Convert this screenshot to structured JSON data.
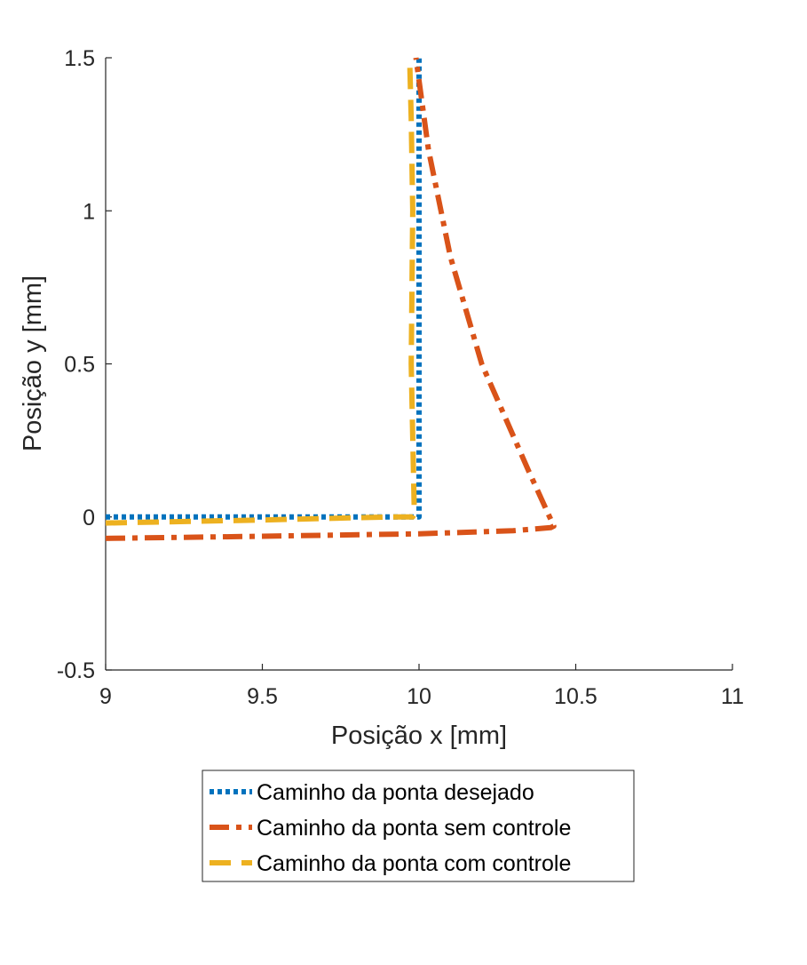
{
  "chart_data": {
    "type": "line",
    "xlabel": "Posição x [mm]",
    "ylabel": "Posição y [mm]",
    "xlim": [
      9,
      11
    ],
    "ylim": [
      -0.5,
      1.5
    ],
    "xticks": [
      "9",
      "9.5",
      "10",
      "10.5",
      "11"
    ],
    "yticks": [
      "-0.5",
      "0",
      "0.5",
      "1",
      "1.5"
    ],
    "grid": false,
    "legend_position": "bottom-outside",
    "series": [
      {
        "name": "Caminho da ponta desejado",
        "color": "#0072BD",
        "style": "dotted",
        "x": [
          9.0,
          10.0,
          10.0
        ],
        "y": [
          0.0,
          0.0,
          1.5
        ]
      },
      {
        "name": "Caminho da ponta sem controle",
        "color": "#D95319",
        "style": "dash-dot",
        "x": [
          9.0,
          9.5,
          10.0,
          10.3,
          10.42,
          10.43,
          10.35,
          10.2,
          10.1,
          10.03,
          9.99
        ],
        "y": [
          -0.07,
          -0.063,
          -0.055,
          -0.045,
          -0.035,
          -0.03,
          0.15,
          0.5,
          0.85,
          1.2,
          1.5
        ]
      },
      {
        "name": "Caminho da ponta com controle",
        "color": "#EDB120",
        "style": "dashed",
        "x": [
          9.0,
          9.5,
          9.9,
          9.98,
          9.985,
          9.975,
          9.98,
          9.975,
          9.97
        ],
        "y": [
          -0.02,
          -0.01,
          0.0,
          0.0,
          0.01,
          0.5,
          1.0,
          1.3,
          1.5
        ]
      }
    ]
  }
}
